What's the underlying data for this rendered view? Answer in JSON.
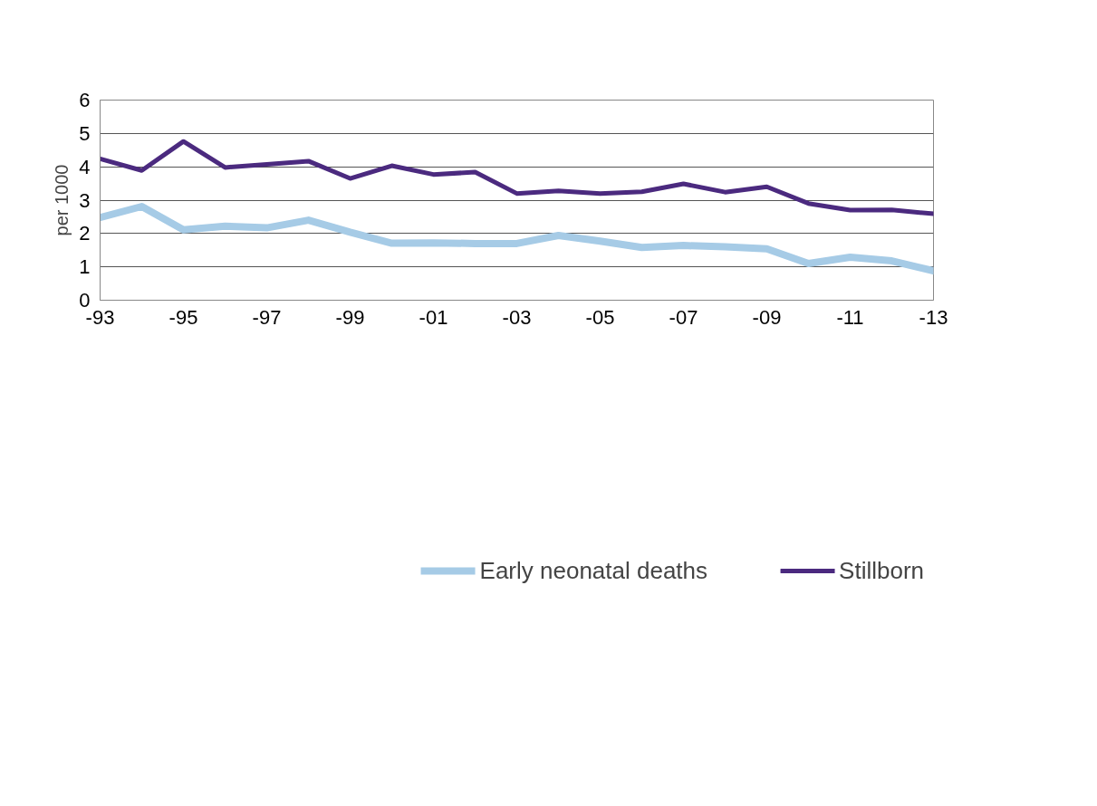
{
  "chart_data": {
    "type": "line",
    "ylabel": "per 1000",
    "categories": [
      "-93",
      null,
      "-95",
      null,
      "-97",
      null,
      "-99",
      null,
      "-01",
      null,
      "-03",
      null,
      "-05",
      null,
      "-07",
      null,
      "-09",
      null,
      "-11",
      null,
      "-13"
    ],
    "series": [
      {
        "name": "Early neonatal deaths",
        "color": "#a6cbe6",
        "values": [
          2.48,
          2.81,
          2.11,
          2.22,
          2.17,
          2.4,
          2.04,
          1.71,
          1.72,
          1.7,
          1.7,
          1.94,
          1.77,
          1.58,
          1.64,
          1.6,
          1.54,
          1.1,
          1.29,
          1.18,
          0.88
        ]
      },
      {
        "name": "Stillborn",
        "color": "#4b2a7f",
        "values": [
          4.24,
          3.89,
          4.76,
          3.98,
          4.07,
          4.17,
          3.65,
          4.03,
          3.77,
          3.84,
          3.2,
          3.28,
          3.2,
          3.25,
          3.49,
          3.24,
          3.4,
          2.9,
          2.7,
          2.71,
          2.59
        ]
      }
    ],
    "ylim": [
      0,
      6
    ],
    "yticks": [
      0,
      1,
      2,
      3,
      4,
      5,
      6
    ],
    "grid": "y",
    "legend": "bottom",
    "marker": "none",
    "line_style": "solid"
  }
}
